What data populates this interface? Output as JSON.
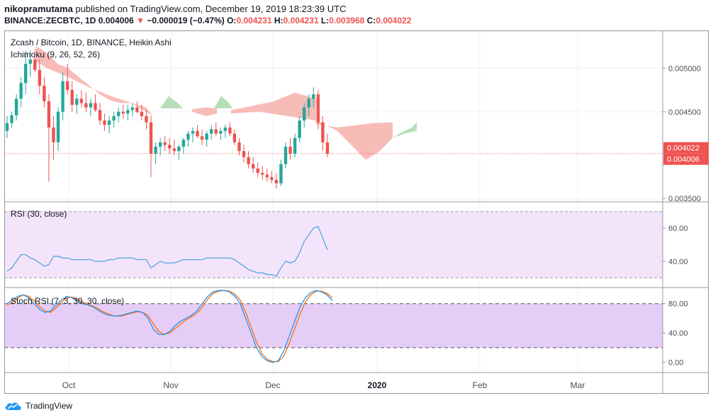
{
  "header": {
    "author": "nikopramutama",
    "published_text": " published on TradingView.com, December 19, 2019 18:23:39 UTC",
    "symbol": "BINANCE:ZECBTC, 1D",
    "last": "0.004006",
    "change": "−0.000019 (−0.47%)",
    "o_label": "O:",
    "o": "0.004231",
    "h_label": "H:",
    "h": "0.004231",
    "l_label": "L:",
    "l": "0.003968",
    "c_label": "C:",
    "c": "0.004022"
  },
  "footer": {
    "brand": "TradingView"
  },
  "colors": {
    "up": "#26a69a",
    "down": "#ef5350",
    "cloud_bear": "#f8bcb8",
    "cloud_bull": "#b6dfb8",
    "rsi_line": "#4aa3d8",
    "stoch_k": "#2196f3",
    "stoch_d": "#ff6d00",
    "rsi_band": "#f3e4fb",
    "stoch_band": "#e6cdf7",
    "grid": "#eef0f3"
  },
  "chart_data": [
    {
      "type": "candlestick",
      "title": "Zcash / Bitcoin, 1D, BINANCE, Heikin Ashi",
      "indicator": "Ichimoku (9, 26, 52, 26)",
      "y_ticks": [
        "0.005000",
        "0.004500",
        "0.003500"
      ],
      "ylim": [
        0.0035,
        0.0055
      ],
      "x_labels": [
        "Oct",
        "Nov",
        "Dec",
        "2020",
        "Feb",
        "Mar"
      ],
      "price_labels": [
        "0.004022",
        "0.004006"
      ],
      "candles_ohlc": [
        [
          0.00428,
          0.00445,
          0.0042,
          0.00437
        ],
        [
          0.00437,
          0.0045,
          0.00432,
          0.00446
        ],
        [
          0.00446,
          0.0047,
          0.0044,
          0.00465
        ],
        [
          0.00465,
          0.0049,
          0.00455,
          0.00483
        ],
        [
          0.00483,
          0.0052,
          0.0047,
          0.00505
        ],
        [
          0.00505,
          0.0052,
          0.0049,
          0.0051
        ],
        [
          0.0051,
          0.00522,
          0.00495,
          0.00498
        ],
        [
          0.00498,
          0.0051,
          0.0047,
          0.0048
        ],
        [
          0.0048,
          0.0049,
          0.00455,
          0.00462
        ],
        [
          0.00462,
          0.0047,
          0.0037,
          0.00432
        ],
        [
          0.00432,
          0.00445,
          0.00395,
          0.00415
        ],
        [
          0.00415,
          0.00455,
          0.00405,
          0.0045
        ],
        [
          0.0045,
          0.00495,
          0.0044,
          0.00485
        ],
        [
          0.00485,
          0.00505,
          0.0047,
          0.00475
        ],
        [
          0.00475,
          0.00485,
          0.0045,
          0.00458
        ],
        [
          0.00458,
          0.0047,
          0.00448,
          0.00465
        ],
        [
          0.00465,
          0.00475,
          0.00455,
          0.0046
        ],
        [
          0.0046,
          0.00472,
          0.0045,
          0.00455
        ],
        [
          0.00455,
          0.00465,
          0.00445,
          0.0046
        ],
        [
          0.0046,
          0.0047,
          0.0045,
          0.00452
        ],
        [
          0.00452,
          0.0046,
          0.00435,
          0.0044
        ],
        [
          0.0044,
          0.00448,
          0.00428,
          0.00435
        ],
        [
          0.00435,
          0.00445,
          0.00425,
          0.0044
        ],
        [
          0.0044,
          0.0045,
          0.00432,
          0.00445
        ],
        [
          0.00445,
          0.00455,
          0.00438,
          0.0045
        ],
        [
          0.0045,
          0.00458,
          0.00442,
          0.00448
        ],
        [
          0.00448,
          0.00458,
          0.0044,
          0.00452
        ],
        [
          0.00452,
          0.0046,
          0.00445,
          0.00455
        ],
        [
          0.00455,
          0.00462,
          0.00448,
          0.0045
        ],
        [
          0.0045,
          0.00458,
          0.0044,
          0.00445
        ],
        [
          0.00445,
          0.00452,
          0.0043,
          0.00438
        ],
        [
          0.00438,
          0.00445,
          0.00375,
          0.00402
        ],
        [
          0.00402,
          0.00415,
          0.0039,
          0.0041
        ],
        [
          0.0041,
          0.0042,
          0.004,
          0.00415
        ],
        [
          0.00415,
          0.00422,
          0.00405,
          0.00412
        ],
        [
          0.00412,
          0.0042,
          0.00402,
          0.00408
        ],
        [
          0.00408,
          0.00418,
          0.004,
          0.00405
        ],
        [
          0.00405,
          0.00412,
          0.00395,
          0.0041
        ],
        [
          0.0041,
          0.0042,
          0.00402,
          0.00418
        ],
        [
          0.00418,
          0.00428,
          0.0041,
          0.00425
        ],
        [
          0.00425,
          0.00432,
          0.00415,
          0.00428
        ],
        [
          0.00428,
          0.00435,
          0.0042,
          0.00422
        ],
        [
          0.00422,
          0.0043,
          0.00412,
          0.00418
        ],
        [
          0.00418,
          0.00428,
          0.0041,
          0.00425
        ],
        [
          0.00425,
          0.00435,
          0.00418,
          0.0043
        ],
        [
          0.0043,
          0.00438,
          0.00422,
          0.00425
        ],
        [
          0.00425,
          0.00432,
          0.00418,
          0.00428
        ],
        [
          0.00428,
          0.00435,
          0.0042,
          0.00432
        ],
        [
          0.00432,
          0.00438,
          0.00422,
          0.00425
        ],
        [
          0.00425,
          0.0043,
          0.00412,
          0.00415
        ],
        [
          0.00415,
          0.0042,
          0.004,
          0.00405
        ],
        [
          0.00405,
          0.00412,
          0.00392,
          0.00398
        ],
        [
          0.00398,
          0.00405,
          0.00385,
          0.0039
        ],
        [
          0.0039,
          0.00398,
          0.0038,
          0.00385
        ],
        [
          0.00385,
          0.00392,
          0.00375,
          0.0038
        ],
        [
          0.0038,
          0.00388,
          0.00372,
          0.00378
        ],
        [
          0.00378,
          0.00385,
          0.0037,
          0.00375
        ],
        [
          0.00375,
          0.00382,
          0.00368,
          0.00372
        ],
        [
          0.00372,
          0.0038,
          0.00362,
          0.00368
        ],
        [
          0.00368,
          0.00395,
          0.00365,
          0.0039
        ],
        [
          0.0039,
          0.00415,
          0.00385,
          0.0041
        ],
        [
          0.0041,
          0.0042,
          0.00395,
          0.00402
        ],
        [
          0.00402,
          0.00425,
          0.00398,
          0.0042
        ],
        [
          0.0042,
          0.00445,
          0.00415,
          0.0044
        ],
        [
          0.0044,
          0.0046,
          0.00432,
          0.00455
        ],
        [
          0.00455,
          0.0047,
          0.00445,
          0.00465
        ],
        [
          0.00465,
          0.00478,
          0.00455,
          0.0047
        ],
        [
          0.0047,
          0.00475,
          0.0043,
          0.00438
        ],
        [
          0.00438,
          0.00445,
          0.00405,
          0.00415
        ],
        [
          0.00415,
          0.00425,
          0.00398,
          0.00402
        ]
      ],
      "cloud_bear_start": [
        0.00525,
        0.00518,
        0.00505,
        0.005,
        0.0049,
        0.0048,
        0.0047,
        0.00463,
        0.0046,
        0.0046
      ],
      "cloud_bear_after": [
        0.00436,
        0.00436,
        0.00432,
        0.00436,
        0.00444
      ],
      "cloud_bull": [
        0.00454,
        0.00461,
        0.00456,
        0.0046,
        0.00463,
        0.00448
      ]
    },
    {
      "type": "line",
      "title": "RSI (30, close)",
      "y_ticks": [
        "60.00",
        "40.00"
      ],
      "ylim": [
        25,
        75
      ],
      "band": [
        30,
        70
      ],
      "values": [
        34,
        36,
        40,
        44,
        44,
        42,
        41,
        39,
        37,
        38,
        43,
        43,
        42,
        42,
        41,
        41,
        41,
        41,
        41,
        40,
        40,
        40,
        41,
        41,
        42,
        42,
        42,
        42,
        41,
        41,
        41,
        36,
        38,
        40,
        39,
        39,
        39,
        40,
        41,
        41,
        41,
        41,
        41,
        42,
        42,
        42,
        42,
        42,
        42,
        41,
        39,
        37,
        35,
        34,
        33,
        33,
        32,
        32,
        31,
        36,
        40,
        39,
        40,
        45,
        52,
        56,
        60,
        61,
        54,
        47
      ]
    },
    {
      "type": "line",
      "title": "Stoch RSI (7, 3, 30, 30, close)",
      "y_ticks": [
        "80.00",
        "40.00",
        "0.00"
      ],
      "ylim": [
        -10,
        110
      ],
      "band": [
        20,
        80
      ],
      "k_values": [
        80,
        85,
        90,
        92,
        88,
        80,
        72,
        68,
        70,
        78,
        85,
        90,
        88,
        84,
        80,
        78,
        75,
        70,
        66,
        64,
        63,
        64,
        66,
        68,
        70,
        68,
        60,
        45,
        38,
        38,
        42,
        50,
        56,
        60,
        64,
        70,
        80,
        90,
        96,
        98,
        98,
        96,
        90,
        80,
        60,
        40,
        20,
        8,
        2,
        0,
        2,
        15,
        35,
        55,
        75,
        88,
        95,
        98,
        96,
        92,
        84
      ],
      "d_values": [
        78,
        82,
        88,
        92,
        90,
        84,
        76,
        70,
        68,
        74,
        82,
        88,
        89,
        86,
        82,
        79,
        76,
        72,
        68,
        65,
        63,
        63,
        65,
        67,
        69,
        68,
        64,
        52,
        42,
        38,
        40,
        46,
        52,
        58,
        62,
        67,
        75,
        86,
        94,
        97,
        98,
        97,
        93,
        85,
        68,
        48,
        28,
        12,
        4,
        1,
        1,
        8,
        25,
        45,
        65,
        82,
        92,
        97,
        97,
        94,
        88
      ]
    }
  ]
}
